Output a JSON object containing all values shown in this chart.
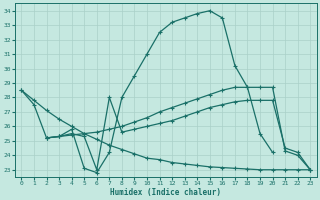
{
  "xlabel": "Humidex (Indice chaleur)",
  "xlim": [
    -0.5,
    23.5
  ],
  "ylim": [
    22.5,
    34.5
  ],
  "xticks": [
    0,
    1,
    2,
    3,
    4,
    5,
    6,
    7,
    8,
    9,
    10,
    11,
    12,
    13,
    14,
    15,
    16,
    17,
    18,
    19,
    20,
    21,
    22,
    23
  ],
  "yticks": [
    23,
    24,
    25,
    26,
    27,
    28,
    29,
    30,
    31,
    32,
    33,
    34
  ],
  "bg_color": "#c5e8e0",
  "line_color": "#1a7068",
  "grid_color": "#aad0c8",
  "line1_x": [
    0,
    1,
    2,
    3,
    4,
    5,
    6,
    7,
    8,
    9,
    10,
    11,
    12,
    13,
    14,
    15,
    16,
    17,
    18,
    19,
    20
  ],
  "line1_y": [
    28.5,
    27.5,
    25.2,
    25.3,
    25.8,
    23.1,
    22.8,
    24.2,
    28.0,
    29.5,
    31.0,
    32.5,
    33.2,
    33.5,
    33.8,
    34.0,
    33.5,
    30.2,
    28.7,
    25.5,
    24.2
  ],
  "line2_x": [
    0,
    1,
    2,
    3,
    4,
    5,
    6,
    7,
    8,
    9,
    10,
    11,
    12,
    13,
    14,
    15,
    16,
    17,
    18,
    19,
    20,
    21,
    22,
    23
  ],
  "line2_y": [
    28.5,
    27.8,
    27.1,
    26.5,
    26.0,
    25.5,
    25.1,
    24.7,
    24.4,
    24.1,
    23.8,
    23.7,
    23.5,
    23.4,
    23.3,
    23.2,
    23.15,
    23.1,
    23.05,
    23.0,
    23.0,
    23.0,
    23.0,
    23.0
  ],
  "line3_x": [
    2,
    3,
    4,
    5,
    6,
    7,
    8,
    9,
    10,
    11,
    12,
    13,
    14,
    15,
    16,
    17,
    18,
    19,
    20,
    21,
    22,
    23
  ],
  "line3_y": [
    25.2,
    25.3,
    25.4,
    25.5,
    25.6,
    25.8,
    26.0,
    26.3,
    26.6,
    27.0,
    27.3,
    27.6,
    27.9,
    28.2,
    28.5,
    28.7,
    28.7,
    28.7,
    28.7,
    24.3,
    24.0,
    23.0
  ],
  "line4_x": [
    2,
    3,
    4,
    5,
    6,
    7,
    8,
    9,
    10,
    11,
    12,
    13,
    14,
    15,
    16,
    17,
    18,
    19,
    20,
    21,
    22,
    23
  ],
  "line4_y": [
    25.2,
    25.3,
    25.5,
    25.3,
    23.0,
    28.0,
    25.6,
    25.8,
    26.0,
    26.2,
    26.4,
    26.7,
    27.0,
    27.3,
    27.5,
    27.7,
    27.8,
    27.8,
    27.8,
    24.5,
    24.2,
    23.0
  ]
}
